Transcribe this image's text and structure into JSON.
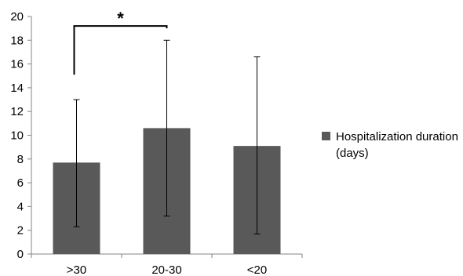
{
  "chart_data": {
    "type": "bar",
    "categories": [
      ">30",
      "20-30",
      "<20"
    ],
    "series": [
      {
        "name": "Hospitalization duration (days)",
        "values": [
          7.7,
          10.6,
          9.1
        ],
        "error_low": [
          2.3,
          3.2,
          1.7
        ],
        "error_high": [
          13.0,
          18.0,
          16.6
        ],
        "color": "#595959"
      }
    ],
    "ylim": [
      0,
      20
    ],
    "yticks": [
      0,
      2,
      4,
      6,
      8,
      10,
      12,
      14,
      16,
      18,
      20
    ],
    "grid": false,
    "legend_position": "right",
    "legend_lines": [
      "Hospitalization duration",
      "(days)"
    ],
    "annotations": [
      {
        "type": "significance-bracket",
        "from": ">30",
        "to": "20-30",
        "label": "*"
      }
    ]
  }
}
